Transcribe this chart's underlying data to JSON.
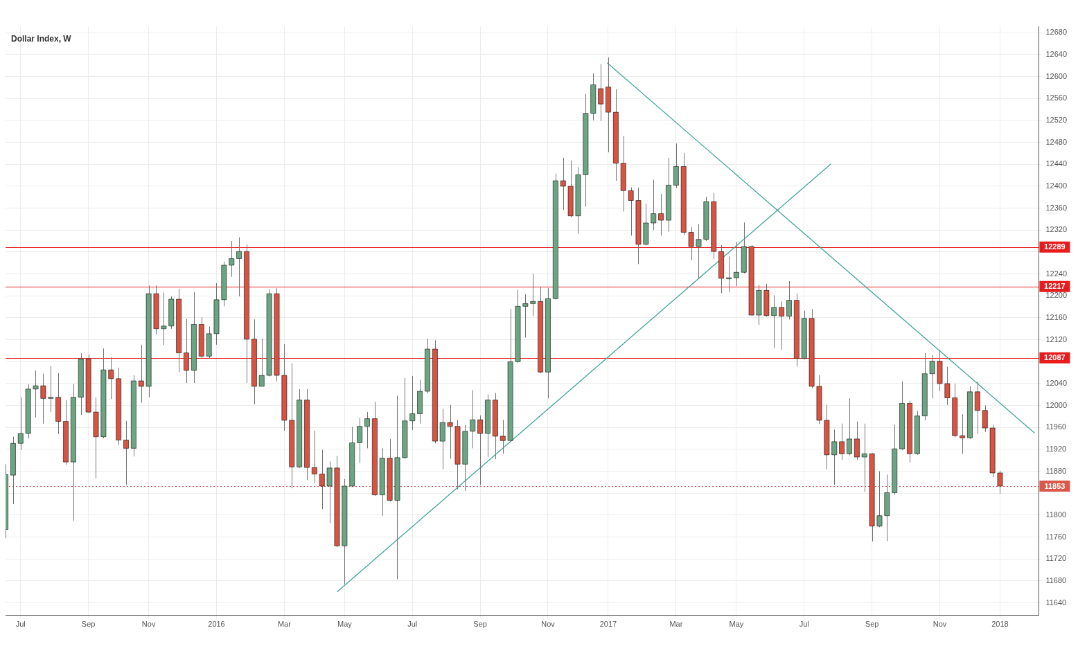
{
  "chart_data": {
    "type": "candlestick",
    "title": "Dollar Index, W",
    "x": [
      "2015-06-22",
      "2015-06-29",
      "2015-07-06",
      "2015-07-13",
      "2015-07-20",
      "2015-07-27",
      "2015-08-03",
      "2015-08-10",
      "2015-08-17",
      "2015-08-24",
      "2015-08-31",
      "2015-09-07",
      "2015-09-14",
      "2015-09-21",
      "2015-09-28",
      "2015-10-05",
      "2015-10-12",
      "2015-10-19",
      "2015-10-26",
      "2015-11-02",
      "2015-11-09",
      "2015-11-16",
      "2015-11-23",
      "2015-11-30",
      "2015-12-07",
      "2015-12-14",
      "2015-12-21",
      "2015-12-28",
      "2016-01-04",
      "2016-01-11",
      "2016-01-18",
      "2016-01-25",
      "2016-02-01",
      "2016-02-08",
      "2016-02-15",
      "2016-02-22",
      "2016-02-29",
      "2016-03-07",
      "2016-03-14",
      "2016-03-21",
      "2016-03-28",
      "2016-04-04",
      "2016-04-11",
      "2016-04-18",
      "2016-04-25",
      "2016-05-02",
      "2016-05-09",
      "2016-05-16",
      "2016-05-23",
      "2016-05-30",
      "2016-06-06",
      "2016-06-13",
      "2016-06-20",
      "2016-06-27",
      "2016-07-04",
      "2016-07-11",
      "2016-07-18",
      "2016-07-25",
      "2016-08-01",
      "2016-08-08",
      "2016-08-15",
      "2016-08-22",
      "2016-08-29",
      "2016-09-05",
      "2016-09-12",
      "2016-09-19",
      "2016-09-26",
      "2016-10-03",
      "2016-10-10",
      "2016-10-17",
      "2016-10-24",
      "2016-10-31",
      "2016-11-07",
      "2016-11-14",
      "2016-11-21",
      "2016-11-28",
      "2016-12-05",
      "2016-12-12",
      "2016-12-19",
      "2016-12-26",
      "2017-01-02",
      "2017-01-09",
      "2017-01-16",
      "2017-01-23",
      "2017-01-30",
      "2017-02-06",
      "2017-02-13",
      "2017-02-20",
      "2017-02-27",
      "2017-03-06",
      "2017-03-13",
      "2017-03-20",
      "2017-03-27",
      "2017-04-03",
      "2017-04-10",
      "2017-04-17",
      "2017-04-24",
      "2017-05-01",
      "2017-05-08",
      "2017-05-15",
      "2017-05-22",
      "2017-05-29",
      "2017-06-05",
      "2017-06-12",
      "2017-06-19",
      "2017-06-26",
      "2017-07-03",
      "2017-07-10",
      "2017-07-17",
      "2017-07-24",
      "2017-07-31",
      "2017-08-07",
      "2017-08-14",
      "2017-08-21",
      "2017-08-28",
      "2017-09-04",
      "2017-09-11",
      "2017-09-18",
      "2017-09-25",
      "2017-10-02",
      "2017-10-09",
      "2017-10-16",
      "2017-10-23",
      "2017-10-30",
      "2017-11-06",
      "2017-11-13",
      "2017-11-20",
      "2017-11-27",
      "2017-12-04",
      "2017-12-11",
      "2017-12-18",
      "2017-12-25",
      "2018-01-01"
    ],
    "ohlc": [
      [
        11774,
        11893,
        11758,
        11874
      ],
      [
        11873,
        11943,
        11820,
        11931
      ],
      [
        11931,
        12015,
        11919,
        11949
      ],
      [
        11949,
        12039,
        11940,
        12030
      ],
      [
        12030,
        12064,
        11978,
        12036
      ],
      [
        12036,
        12058,
        11967,
        12013
      ],
      [
        12013,
        12072,
        11988,
        12015
      ],
      [
        12015,
        12059,
        11948,
        11971
      ],
      [
        11971,
        12010,
        11892,
        11897
      ],
      [
        11897,
        12039,
        11790,
        12015
      ],
      [
        12015,
        12095,
        11983,
        12085
      ],
      [
        12085,
        12093,
        11986,
        11988
      ],
      [
        11988,
        12015,
        11867,
        11943
      ],
      [
        11943,
        12104,
        11940,
        12065
      ],
      [
        12065,
        12088,
        12012,
        12049
      ],
      [
        12049,
        12069,
        11928,
        11937
      ],
      [
        11937,
        11972,
        11855,
        11922
      ],
      [
        11922,
        12055,
        11907,
        12045
      ],
      [
        12045,
        12111,
        12005,
        12035
      ],
      [
        12035,
        12219,
        12015,
        12204
      ],
      [
        12204,
        12219,
        12130,
        12140
      ],
      [
        12140,
        12206,
        12110,
        12145
      ],
      [
        12145,
        12199,
        12140,
        12194
      ],
      [
        12194,
        12213,
        12061,
        12096
      ],
      [
        12096,
        12158,
        12041,
        12064
      ],
      [
        12064,
        12207,
        12041,
        12148
      ],
      [
        12148,
        12161,
        12087,
        12090
      ],
      [
        12090,
        12144,
        12086,
        12131
      ],
      [
        12131,
        12223,
        12111,
        12193
      ],
      [
        12193,
        12262,
        12181,
        12256
      ],
      [
        12256,
        12300,
        12235,
        12268
      ],
      [
        12268,
        12307,
        12199,
        12281
      ],
      [
        12281,
        12294,
        12041,
        12121
      ],
      [
        12121,
        12157,
        12002,
        12035
      ],
      [
        12035,
        12122,
        12035,
        12055
      ],
      [
        12055,
        12212,
        12053,
        12204
      ],
      [
        12204,
        12214,
        12044,
        12055
      ],
      [
        12055,
        12112,
        11954,
        11973
      ],
      [
        11973,
        12077,
        11849,
        11888
      ],
      [
        11888,
        12030,
        11886,
        12010
      ],
      [
        12010,
        12030,
        11864,
        11887
      ],
      [
        11887,
        11954,
        11858,
        11875
      ],
      [
        11875,
        11919,
        11811,
        11853
      ],
      [
        11853,
        11898,
        11785,
        11886
      ],
      [
        11886,
        11908,
        11742,
        11744
      ],
      [
        11744,
        11866,
        11674,
        11853
      ],
      [
        11853,
        11961,
        11851,
        11932
      ],
      [
        11932,
        11978,
        11895,
        11962
      ],
      [
        11962,
        11988,
        11922,
        11976
      ],
      [
        11976,
        12007,
        11835,
        11837
      ],
      [
        11837,
        11922,
        11799,
        11904
      ],
      [
        11904,
        11939,
        11825,
        11827
      ],
      [
        11827,
        12018,
        11683,
        11905
      ],
      [
        11905,
        12050,
        11903,
        11972
      ],
      [
        11972,
        12054,
        11955,
        11985
      ],
      [
        11985,
        12047,
        11967,
        12026
      ],
      [
        12026,
        12122,
        12022,
        12103
      ],
      [
        12103,
        12119,
        11931,
        11935
      ],
      [
        11935,
        11994,
        11884,
        11969
      ],
      [
        11969,
        12001,
        11903,
        11962
      ],
      [
        11962,
        11974,
        11847,
        11893
      ],
      [
        11893,
        11965,
        11844,
        11953
      ],
      [
        11953,
        12028,
        11922,
        11974
      ],
      [
        11974,
        11982,
        11855,
        11949
      ],
      [
        11949,
        12020,
        11906,
        12010
      ],
      [
        12010,
        12023,
        11902,
        11944
      ],
      [
        11944,
        11974,
        11912,
        11936
      ],
      [
        11936,
        12176,
        11934,
        12080
      ],
      [
        12080,
        12211,
        12078,
        12181
      ],
      [
        12181,
        12203,
        12124,
        12186
      ],
      [
        12186,
        12240,
        12163,
        12190
      ],
      [
        12190,
        12217,
        12059,
        12061
      ],
      [
        12061,
        12214,
        12013,
        12195
      ],
      [
        12195,
        12423,
        12193,
        12410
      ],
      [
        12410,
        12452,
        12357,
        12400
      ],
      [
        12400,
        12447,
        12343,
        12346
      ],
      [
        12346,
        12435,
        12313,
        12421
      ],
      [
        12421,
        12568,
        12363,
        12533
      ],
      [
        12533,
        12606,
        12520,
        12585
      ],
      [
        12578,
        12623,
        12519,
        12550
      ],
      [
        12581,
        12635,
        12462,
        12535
      ],
      [
        12535,
        12577,
        12410,
        12442
      ],
      [
        12442,
        12492,
        12354,
        12392
      ],
      [
        12392,
        12398,
        12310,
        12374
      ],
      [
        12374,
        12397,
        12258,
        12294
      ],
      [
        12294,
        12368,
        12292,
        12333
      ],
      [
        12333,
        12412,
        12320,
        12350
      ],
      [
        12350,
        12386,
        12310,
        12338
      ],
      [
        12338,
        12452,
        12317,
        12402
      ],
      [
        12402,
        12478,
        12397,
        12436
      ],
      [
        12436,
        12461,
        12311,
        12316
      ],
      [
        12316,
        12325,
        12265,
        12290
      ],
      [
        12290,
        12331,
        12231,
        12303
      ],
      [
        12303,
        12381,
        12300,
        12372
      ],
      [
        12372,
        12388,
        12268,
        12281
      ],
      [
        12281,
        12293,
        12205,
        12232
      ],
      [
        12232,
        12272,
        12207,
        12233
      ],
      [
        12233,
        12298,
        12218,
        12243
      ],
      [
        12243,
        12334,
        12241,
        12290
      ],
      [
        12290,
        12293,
        12164,
        12165
      ],
      [
        12165,
        12220,
        12147,
        12210
      ],
      [
        12210,
        12222,
        12162,
        12164
      ],
      [
        12164,
        12201,
        12105,
        12179
      ],
      [
        12179,
        12190,
        12102,
        12163
      ],
      [
        12163,
        12227,
        12157,
        12192
      ],
      [
        12192,
        12204,
        12071,
        12086
      ],
      [
        12086,
        12173,
        12084,
        12159
      ],
      [
        12159,
        12176,
        12032,
        12035
      ],
      [
        12035,
        12055,
        11966,
        11973
      ],
      [
        11973,
        12001,
        11884,
        11910
      ],
      [
        11910,
        11956,
        11855,
        11934
      ],
      [
        11934,
        11967,
        11901,
        11912
      ],
      [
        11912,
        12013,
        11909,
        11939
      ],
      [
        11939,
        11971,
        11901,
        11906
      ],
      [
        11906,
        11967,
        11842,
        11912
      ],
      [
        11912,
        11913,
        11752,
        11780
      ],
      [
        11780,
        11880,
        11778,
        11799
      ],
      [
        11799,
        11874,
        11753,
        11841
      ],
      [
        11841,
        11965,
        11837,
        11921
      ],
      [
        11921,
        12044,
        11919,
        12004
      ],
      [
        12004,
        12009,
        11896,
        11912
      ],
      [
        11912,
        11990,
        11910,
        11981
      ],
      [
        11981,
        12096,
        11973,
        12058
      ],
      [
        12058,
        12092,
        12013,
        12081
      ],
      [
        12081,
        12101,
        12026,
        12040
      ],
      [
        12040,
        12071,
        12001,
        12014
      ],
      [
        12014,
        12040,
        11942,
        11945
      ],
      [
        11945,
        11984,
        11912,
        11941
      ],
      [
        11941,
        12035,
        11939,
        12025
      ],
      [
        12025,
        12044,
        11948,
        11991
      ],
      [
        11991,
        12000,
        11952,
        11959
      ],
      [
        11959,
        11965,
        11869,
        11877
      ],
      [
        11877,
        11881,
        11839,
        11853
      ]
    ],
    "colors": [
      "#6ba583",
      "#6ba583",
      "#6ba583",
      "#6ba583",
      "#6ba583",
      "#d75442",
      "#6ba583",
      "#d75442",
      "#d75442",
      "#6ba583",
      "#6ba583",
      "#d75442",
      "#d75442",
      "#6ba583",
      "#d75442",
      "#d75442",
      "#d75442",
      "#6ba583",
      "#d75442",
      "#6ba583",
      "#d75442",
      "#6ba583",
      "#6ba583",
      "#d75442",
      "#d75442",
      "#6ba583",
      "#d75442",
      "#6ba583",
      "#6ba583",
      "#6ba583",
      "#6ba583",
      "#6ba583",
      "#d75442",
      "#d75442",
      "#6ba583",
      "#6ba583",
      "#d75442",
      "#d75442",
      "#d75442",
      "#6ba583",
      "#d75442",
      "#d75442",
      "#d75442",
      "#6ba583",
      "#d75442",
      "#6ba583",
      "#6ba583",
      "#6ba583",
      "#6ba583",
      "#d75442",
      "#6ba583",
      "#d75442",
      "#6ba583",
      "#6ba583",
      "#6ba583",
      "#6ba583",
      "#6ba583",
      "#d75442",
      "#6ba583",
      "#d75442",
      "#d75442",
      "#6ba583",
      "#6ba583",
      "#d75442",
      "#6ba583",
      "#d75442",
      "#d75442",
      "#6ba583",
      "#6ba583",
      "#6ba583",
      "#6ba583",
      "#d75442",
      "#6ba583",
      "#6ba583",
      "#d75442",
      "#d75442",
      "#6ba583",
      "#6ba583",
      "#6ba583",
      "#d75442",
      "#d75442",
      "#d75442",
      "#d75442",
      "#d75442",
      "#d75442",
      "#6ba583",
      "#6ba583",
      "#d75442",
      "#6ba583",
      "#6ba583",
      "#d75442",
      "#d75442",
      "#6ba583",
      "#6ba583",
      "#d75442",
      "#d75442",
      "#6ba583",
      "#6ba583",
      "#6ba583",
      "#d75442",
      "#6ba583",
      "#d75442",
      "#6ba583",
      "#d75442",
      "#6ba583",
      "#d75442",
      "#6ba583",
      "#d75442",
      "#d75442",
      "#d75442",
      "#6ba583",
      "#d75442",
      "#6ba583",
      "#d75442",
      "#6ba583",
      "#d75442",
      "#6ba583",
      "#6ba583",
      "#6ba583",
      "#6ba583",
      "#d75442",
      "#6ba583",
      "#6ba583",
      "#6ba583",
      "#d75442",
      "#d75442",
      "#d75442",
      "#d75442",
      "#6ba583",
      "#d75442",
      "#d75442",
      "#d75442",
      "#d75442"
    ],
    "series": [
      {
        "type": "line",
        "color": "#3fa69a",
        "x": [
          "2016-04-25",
          "2017-07-28"
        ],
        "values": [
          11660,
          12441
        ]
      },
      {
        "type": "line",
        "color": "#3fa69a",
        "x": [
          "2017-01-01",
          "2018-02-02"
        ],
        "values": [
          12625,
          11950
        ]
      }
    ],
    "ref_lines": [
      {
        "axis": "y",
        "value": 12289,
        "label": "12289",
        "color": "#e81c1c"
      },
      {
        "axis": "y",
        "value": 12217,
        "label": "12217",
        "color": "#e81c1c"
      },
      {
        "axis": "y",
        "value": 12087,
        "label": "12087",
        "color": "#e81c1c"
      },
      {
        "axis": "y",
        "value": 11853,
        "label": "11853",
        "color": "#d9584a",
        "line_style": "dotted"
      }
    ],
    "xlim": [
      "2015-06-22",
      "2018-02-06"
    ],
    "xticks": [
      {
        "value": "2015-07-06",
        "label": "Jul"
      },
      {
        "value": "2015-09-07",
        "label": "Sep"
      },
      {
        "value": "2015-11-02",
        "label": "Nov"
      },
      {
        "value": "2016-01-04",
        "label": "2016"
      },
      {
        "value": "2016-03-07",
        "label": "Mar"
      },
      {
        "value": "2016-05-02",
        "label": "May"
      },
      {
        "value": "2016-07-04",
        "label": "Jul"
      },
      {
        "value": "2016-09-05",
        "label": "Sep"
      },
      {
        "value": "2016-11-07",
        "label": "Nov"
      },
      {
        "value": "2017-01-02",
        "label": "2017"
      },
      {
        "value": "2017-03-06",
        "label": "Mar"
      },
      {
        "value": "2017-05-01",
        "label": "May"
      },
      {
        "value": "2017-07-03",
        "label": "Jul"
      },
      {
        "value": "2017-09-04",
        "label": "Sep"
      },
      {
        "value": "2017-11-06",
        "label": "Nov"
      },
      {
        "value": "2018-01-01",
        "label": "2018"
      }
    ],
    "ylim": [
      11617,
      12691
    ],
    "yticks": [
      11640,
      11680,
      11720,
      11760,
      11800,
      {
        "value": 11840,
        "label": null
      },
      11880,
      11920,
      11960,
      12000,
      12040,
      {
        "value": 12080,
        "label": null
      },
      12120,
      12160,
      12200,
      12240,
      {
        "value": 12280,
        "label": null
      },
      12320,
      12360,
      12400,
      12440,
      12480,
      12520,
      12560,
      12600,
      12640,
      12680
    ],
    "grid": true,
    "legend": false
  }
}
